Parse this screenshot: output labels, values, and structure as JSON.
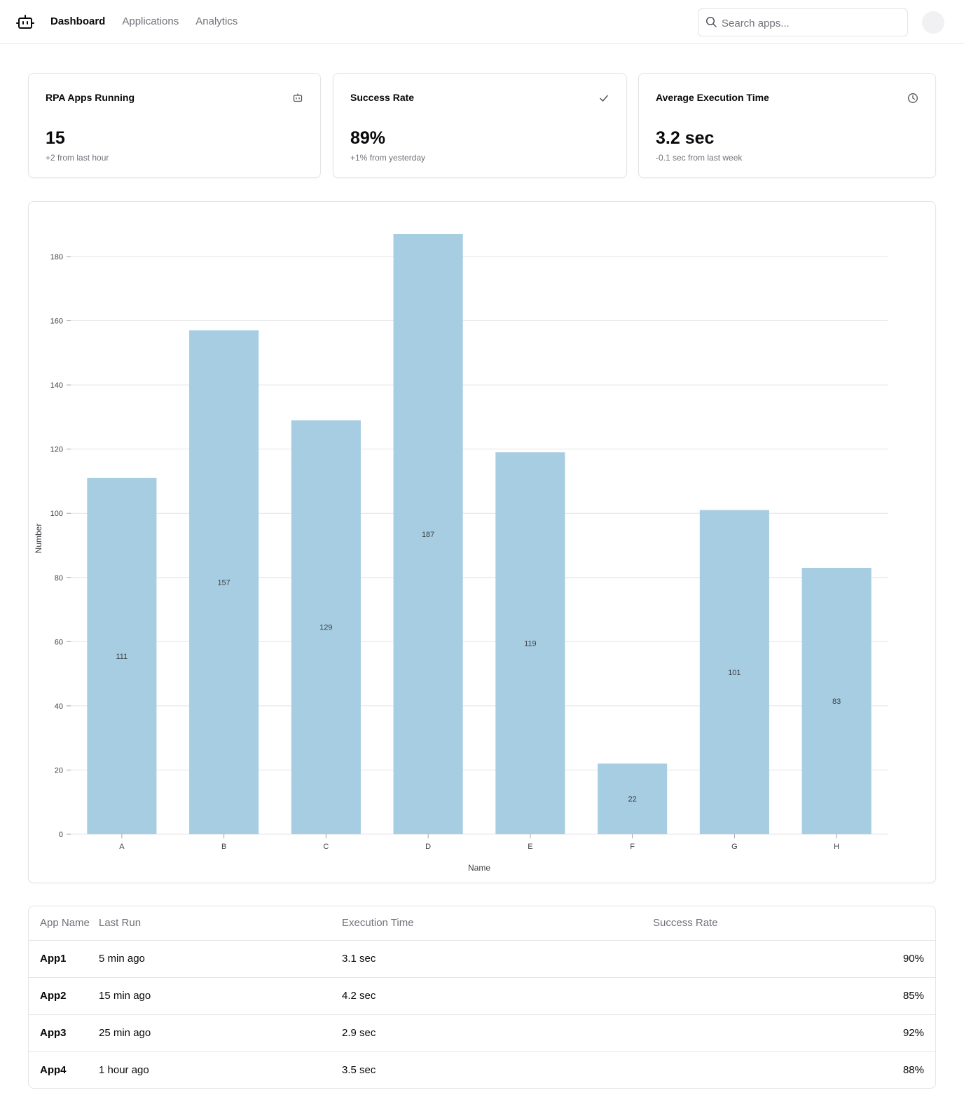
{
  "header": {
    "logo_icon": "robot-icon",
    "nav": [
      {
        "label": "Dashboard",
        "active": true
      },
      {
        "label": "Applications",
        "active": false
      },
      {
        "label": "Analytics",
        "active": false
      }
    ],
    "search": {
      "placeholder": "Search apps...",
      "value": "",
      "icon": "search-icon"
    },
    "avatar_icon": "avatar"
  },
  "stats": [
    {
      "title": "RPA Apps Running",
      "value": "15",
      "note": "+2 from last hour",
      "icon": "robot-icon"
    },
    {
      "title": "Success Rate",
      "value": "89%",
      "note": "+1% from yesterday",
      "icon": "check-icon"
    },
    {
      "title": "Average Execution Time",
      "value": "3.2 sec",
      "note": "-0.1 sec from last week",
      "icon": "clock-icon"
    }
  ],
  "chart_data": {
    "type": "bar",
    "categories": [
      "A",
      "B",
      "C",
      "D",
      "E",
      "F",
      "G",
      "H"
    ],
    "values": [
      111,
      157,
      129,
      187,
      119,
      22,
      101,
      83
    ],
    "xlabel": "Name",
    "ylabel": "Number",
    "ylim": [
      0,
      180
    ],
    "yticks": [
      0,
      20,
      40,
      60,
      80,
      100,
      120,
      140,
      160,
      180
    ],
    "bar_color": "#a6cde2",
    "grid": true,
    "data_labels": true
  },
  "table": {
    "columns": [
      "App Name",
      "Last Run",
      "Execution Time",
      "Success Rate"
    ],
    "rows": [
      [
        "App1",
        "5 min ago",
        "3.1 sec",
        "90%"
      ],
      [
        "App2",
        "15 min ago",
        "4.2 sec",
        "85%"
      ],
      [
        "App3",
        "25 min ago",
        "2.9 sec",
        "92%"
      ],
      [
        "App4",
        "1 hour ago",
        "3.5 sec",
        "88%"
      ]
    ]
  }
}
